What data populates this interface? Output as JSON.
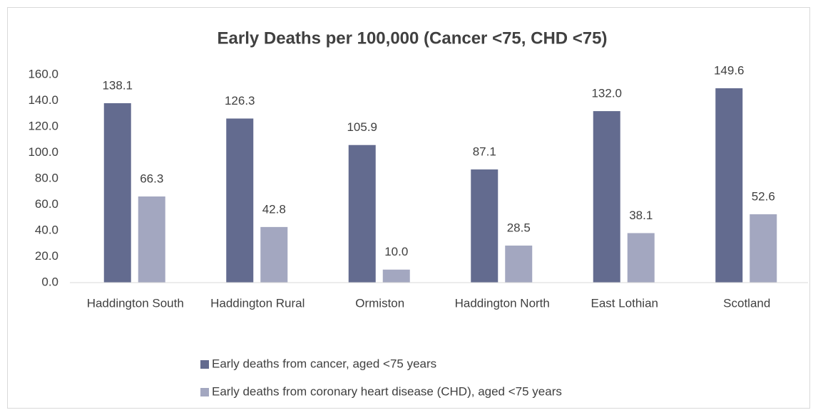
{
  "chart_data": {
    "type": "bar",
    "title": "Early Deaths per 100,000 (Cancer <75, CHD <75)",
    "categories": [
      "Haddington South",
      "Haddington Rural",
      "Ormiston",
      "Haddington North",
      "East Lothian",
      "Scotland"
    ],
    "series": [
      {
        "name": "Early deaths from cancer, aged <75 years",
        "color": "#636b8f",
        "values": [
          138.1,
          126.3,
          105.9,
          87.1,
          132.0,
          149.6
        ],
        "value_labels": [
          "138.1",
          "126.3",
          "105.9",
          "87.1",
          "132.0",
          "149.6"
        ]
      },
      {
        "name": "Early deaths from coronary heart disease (CHD), aged <75 years",
        "color": "#a3a7c0",
        "values": [
          66.3,
          42.8,
          10.0,
          28.5,
          38.1,
          52.6
        ],
        "value_labels": [
          "66.3",
          "42.8",
          "10.0",
          "28.5",
          "38.1",
          "52.6"
        ]
      }
    ],
    "ylim": [
      0,
      160
    ],
    "yticks": [
      {
        "value": 0,
        "label": "0.0"
      },
      {
        "value": 20,
        "label": "20.0"
      },
      {
        "value": 40,
        "label": "40.0"
      },
      {
        "value": 60,
        "label": "60.0"
      },
      {
        "value": 80,
        "label": "80.0"
      },
      {
        "value": 100,
        "label": "100.0"
      },
      {
        "value": 120,
        "label": "120.0"
      },
      {
        "value": 140,
        "label": "140.0"
      },
      {
        "value": 160,
        "label": "160.0"
      }
    ],
    "grid": false
  }
}
